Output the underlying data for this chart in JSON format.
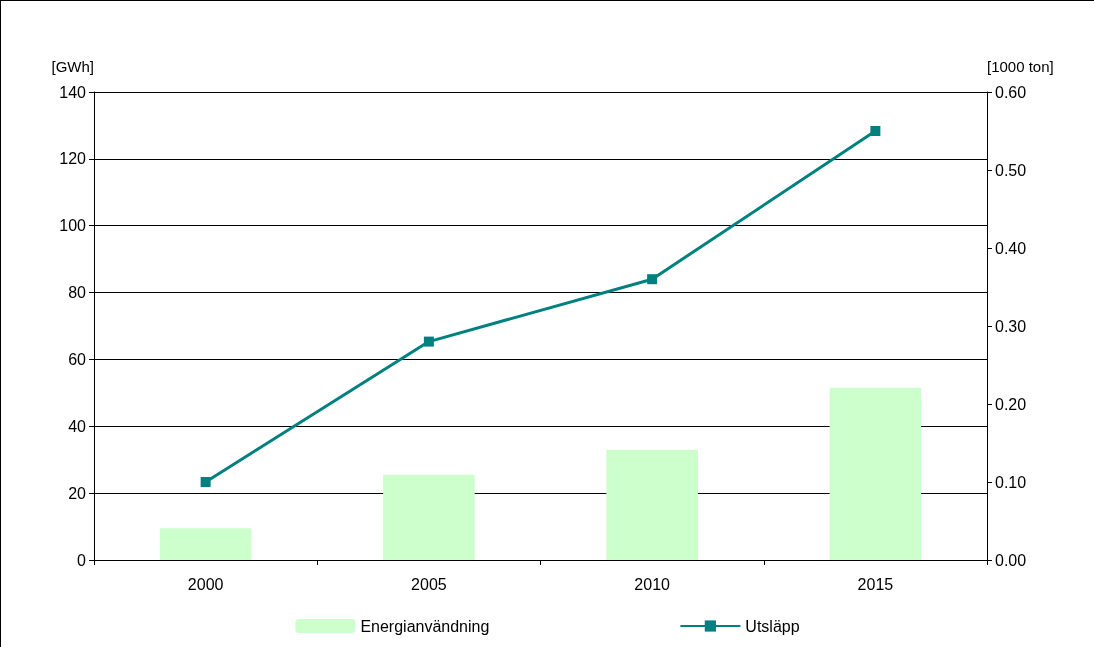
{
  "chart_data": {
    "type": "bar",
    "categories": [
      "2000",
      "2005",
      "2010",
      "2015"
    ],
    "ylabel": "[GWh]",
    "y2label": "[1000 ton]",
    "series": [
      {
        "name": "Energianvändning",
        "color": "#ccffcc",
        "values": [
          9.5,
          25.5,
          33,
          51.5
        ]
      },
      {
        "name": "Utsläpp",
        "type": "line",
        "axis": "y2",
        "color": "#008080",
        "marker": "square",
        "values": [
          0.1,
          0.28,
          0.36,
          0.55
        ]
      }
    ],
    "ylim": [
      0,
      140
    ],
    "yticks": [
      0,
      20,
      40,
      60,
      80,
      100,
      120,
      140
    ],
    "y2lim": [
      0,
      0.6
    ],
    "y2ticks": [
      {
        "value": 0,
        "label": "0.00"
      },
      {
        "value": 0.1,
        "label": "0.10"
      },
      {
        "value": 0.2,
        "label": "0.20"
      },
      {
        "value": 0.3,
        "label": "0.30"
      },
      {
        "value": 0.4,
        "label": "0.40"
      },
      {
        "value": 0.5,
        "label": "0.50"
      },
      {
        "value": 0.6,
        "label": "0.60"
      }
    ],
    "grid": "y",
    "legend": "bottom"
  }
}
